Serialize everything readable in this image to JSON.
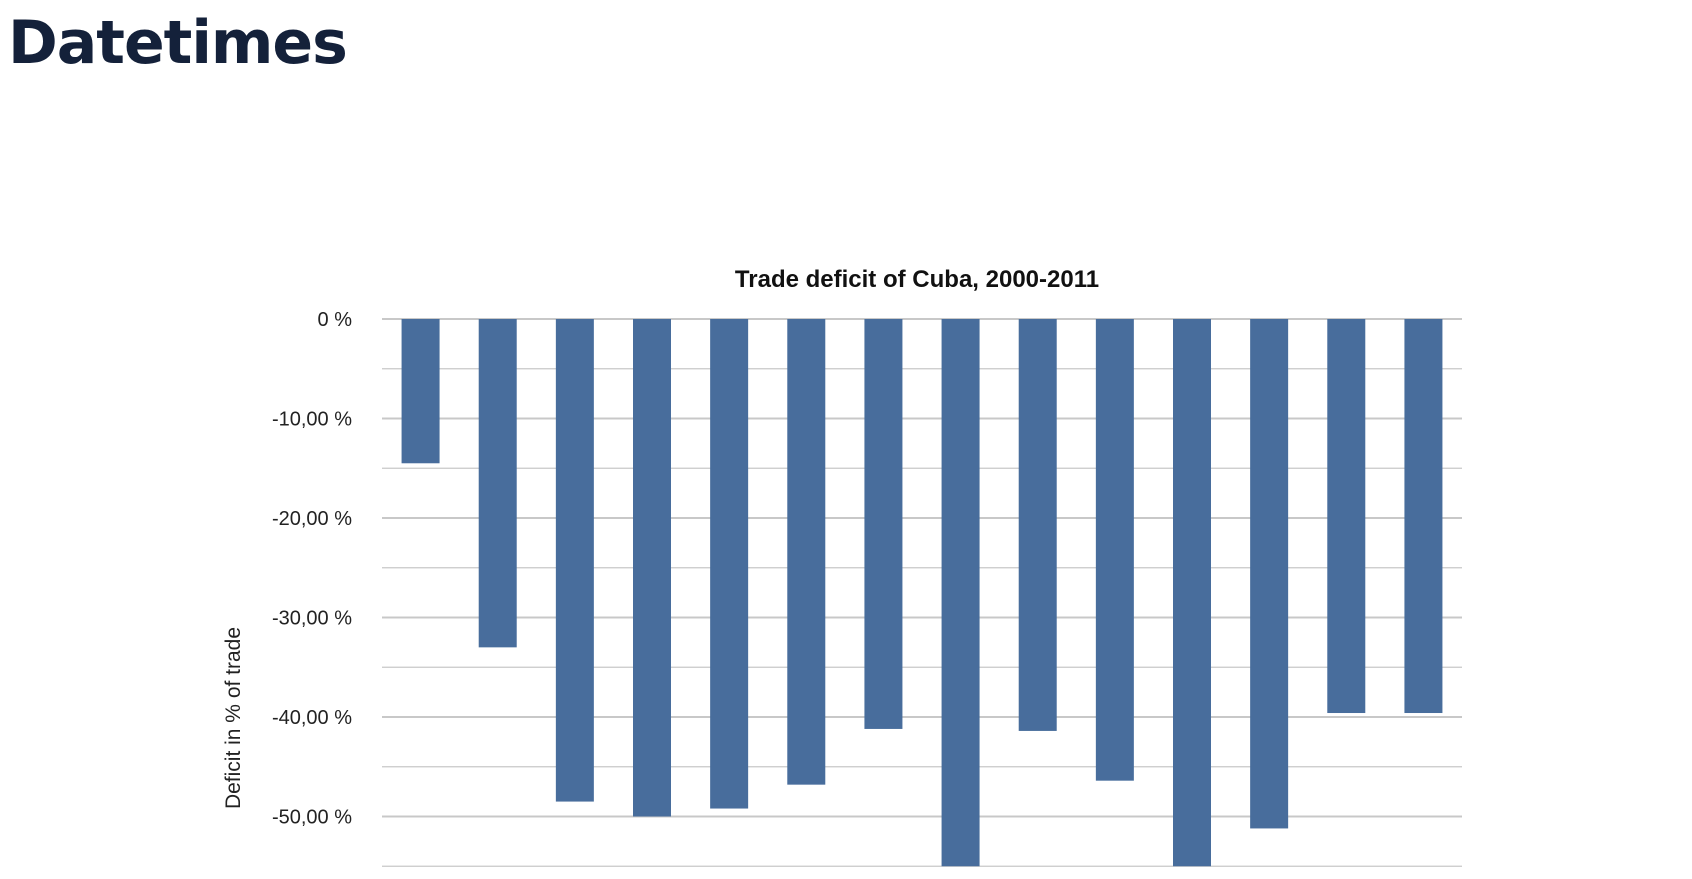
{
  "page": {
    "title": "Datetimes"
  },
  "chart_data": {
    "type": "bar",
    "title": "Trade deficit of Cuba, 2000-2011",
    "xlabel": "",
    "ylabel": "Deficit in % of trade",
    "ylim": [
      -55,
      0
    ],
    "y_ticks": [
      0,
      -10,
      -20,
      -30,
      -40,
      -50
    ],
    "y_tick_labels": [
      "0 %",
      "-10,00 %",
      "-20,00 %",
      "-30,00 %",
      "-40,00 %",
      "-50,00 %"
    ],
    "minor_gridlines": true,
    "bar_color": "#486d9c",
    "grid_color": "#c8c8c8",
    "values": [
      -14.5,
      -33,
      -48.5,
      -50,
      -49.2,
      -46.8,
      -41.2,
      -55,
      -41.4,
      -46.4,
      -55,
      -51.2,
      -39.6,
      -39.6
    ]
  }
}
